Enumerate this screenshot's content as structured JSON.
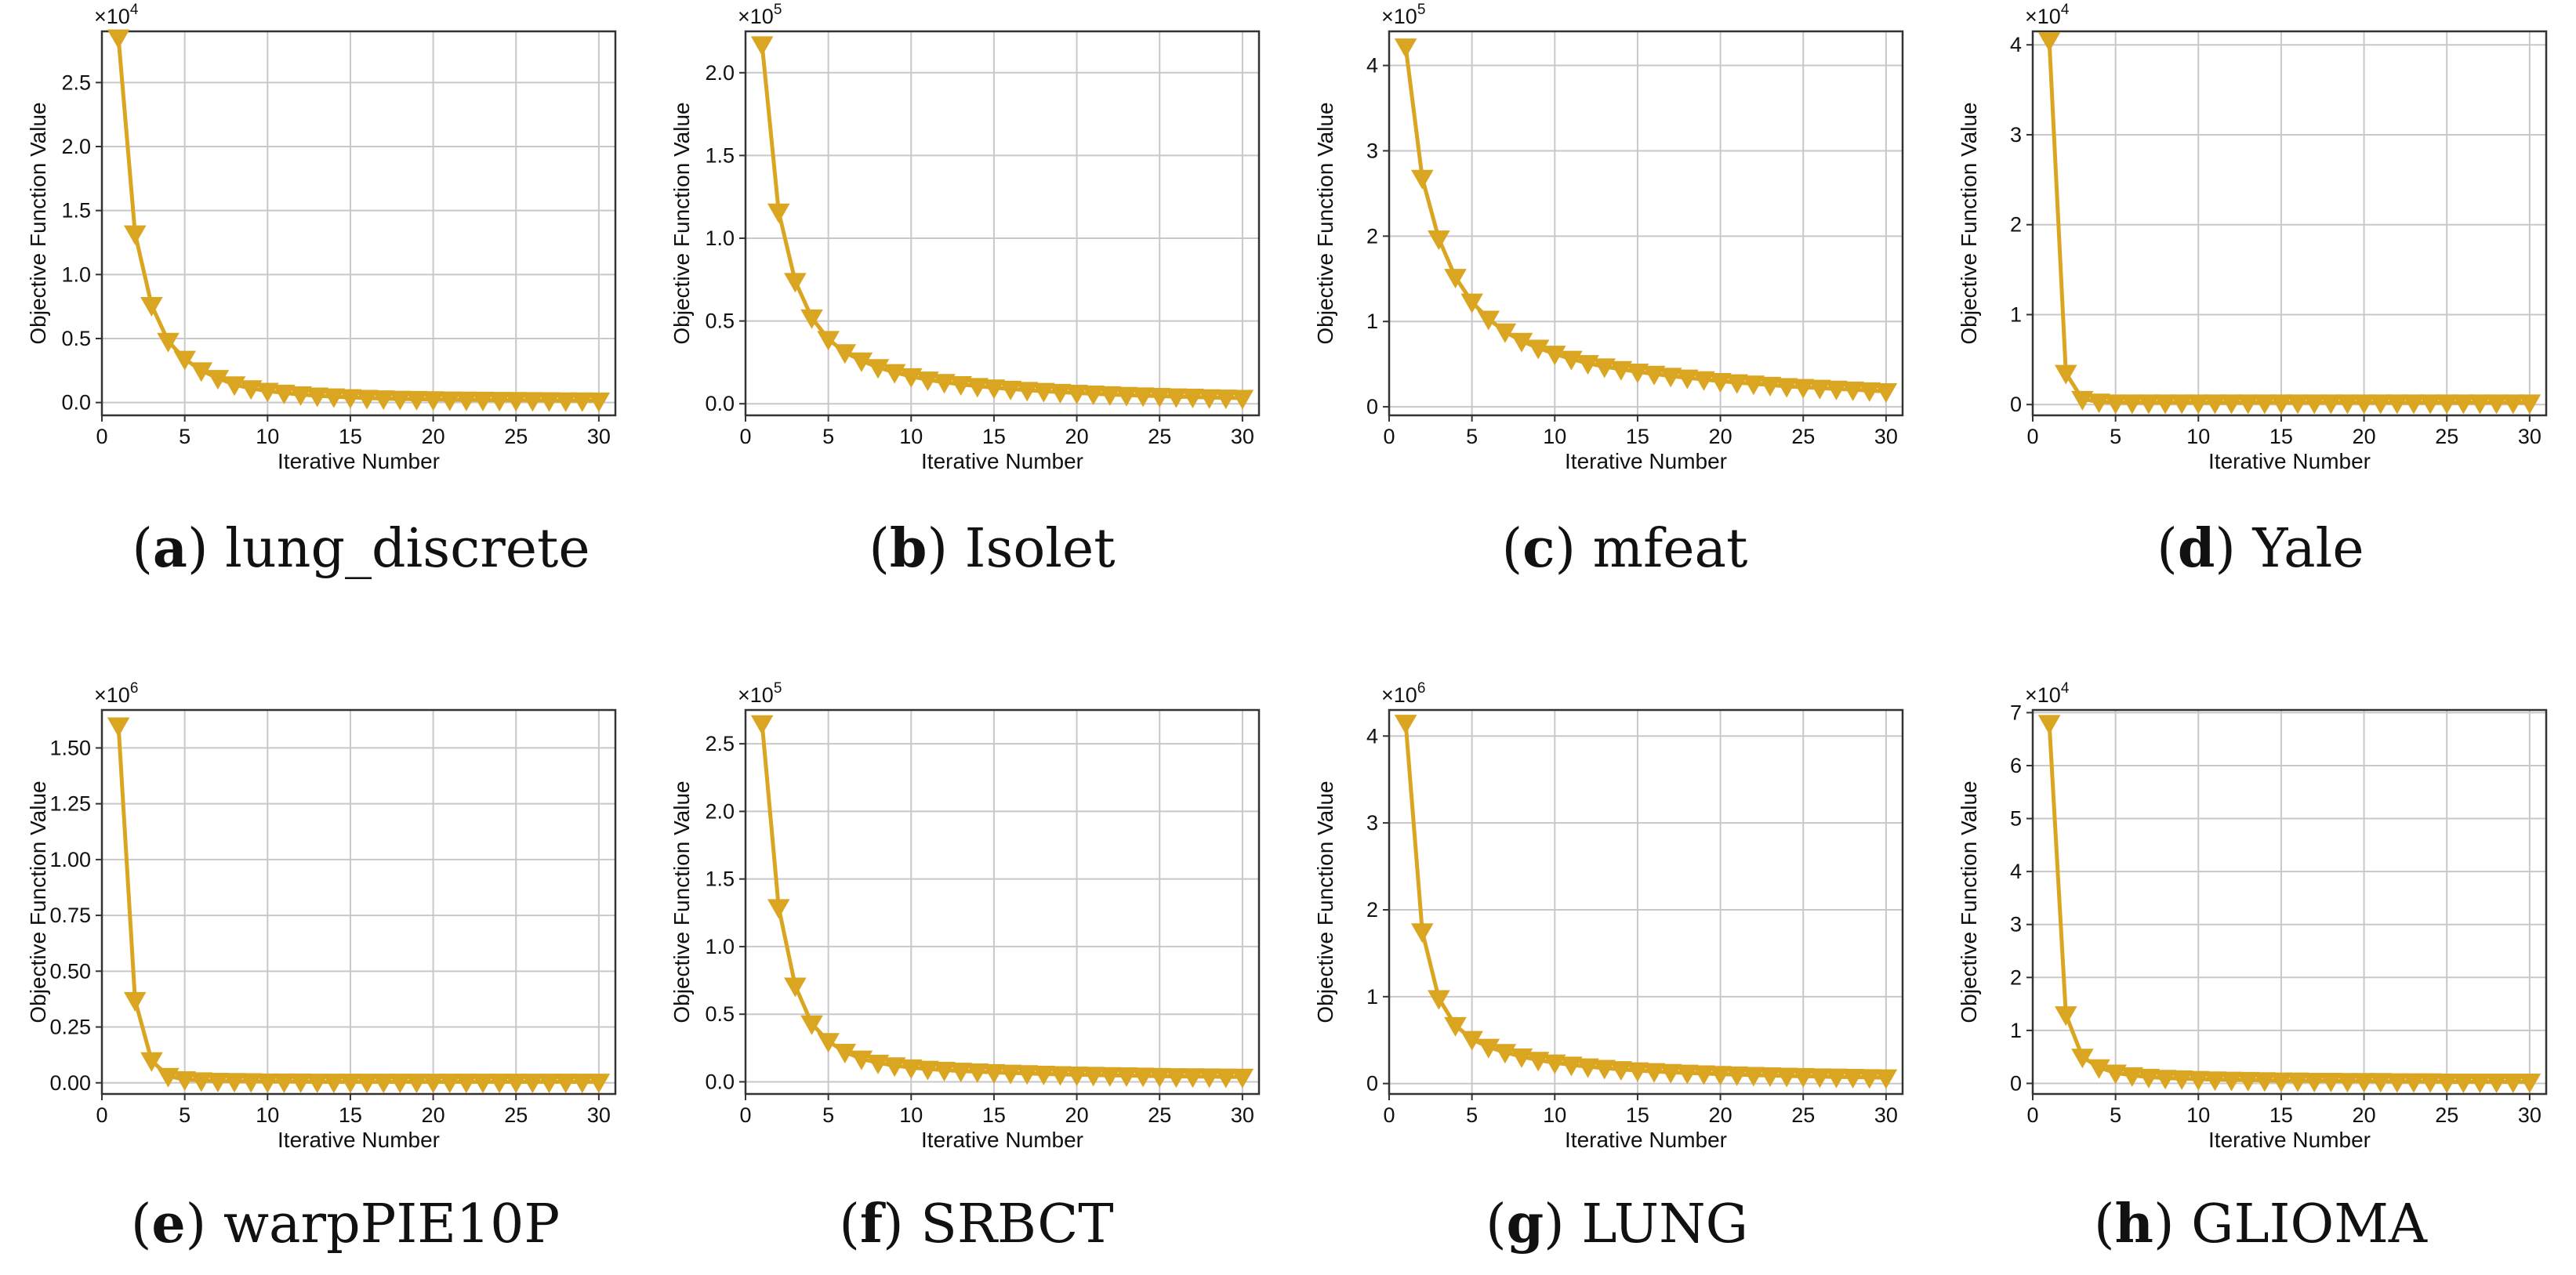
{
  "figure": {
    "line_color": "#DAA520",
    "marker": "down-triangle"
  },
  "chart_data": [
    {
      "id": "a",
      "type": "line",
      "letter": "a",
      "caption": "lung_discrete",
      "xlabel": "Iterative Number",
      "ylabel": "Objective Function Value",
      "scale_label": "×10",
      "scale_exp": "4",
      "scale": 10000,
      "xlim": [
        0,
        31
      ],
      "ylim": [
        -0.1,
        2.9
      ],
      "xticks": [
        0,
        5,
        10,
        15,
        20,
        25,
        30
      ],
      "xtick_labels": [
        "0",
        "5",
        "10",
        "15",
        "20",
        "25",
        "30"
      ],
      "yticks": [
        0,
        0.5,
        1.0,
        1.5,
        2.0,
        2.5
      ],
      "ytick_labels": [
        "0.0",
        "0.5",
        "1.0",
        "1.5",
        "2.0",
        "2.5"
      ],
      "x": [
        1,
        2,
        3,
        4,
        5,
        6,
        7,
        8,
        9,
        10,
        11,
        12,
        13,
        14,
        15,
        16,
        17,
        18,
        19,
        20,
        21,
        22,
        23,
        24,
        25,
        26,
        27,
        28,
        29,
        30
      ],
      "values": [
        2.85,
        1.32,
        0.76,
        0.48,
        0.34,
        0.25,
        0.19,
        0.14,
        0.11,
        0.09,
        0.075,
        0.062,
        0.053,
        0.046,
        0.04,
        0.035,
        0.031,
        0.028,
        0.026,
        0.024,
        0.022,
        0.021,
        0.02,
        0.019,
        0.018,
        0.017,
        0.016,
        0.015,
        0.015,
        0.014
      ]
    },
    {
      "id": "b",
      "type": "line",
      "letter": "b",
      "caption": "Isolet",
      "xlabel": "Iterative Number",
      "ylabel": "Objective Function Value",
      "scale_label": "×10",
      "scale_exp": "5",
      "scale": 100000,
      "xlim": [
        0,
        31
      ],
      "ylim": [
        -0.07,
        2.25
      ],
      "xticks": [
        0,
        5,
        10,
        15,
        20,
        25,
        30
      ],
      "xtick_labels": [
        "0",
        "5",
        "10",
        "15",
        "20",
        "25",
        "30"
      ],
      "yticks": [
        0,
        0.5,
        1.0,
        1.5,
        2.0
      ],
      "ytick_labels": [
        "0.0",
        "0.5",
        "1.0",
        "1.5",
        "2.0"
      ],
      "x": [
        1,
        2,
        3,
        4,
        5,
        6,
        7,
        8,
        9,
        10,
        11,
        12,
        13,
        14,
        15,
        16,
        17,
        18,
        19,
        20,
        21,
        22,
        23,
        24,
        25,
        26,
        27,
        28,
        29,
        30
      ],
      "values": [
        2.17,
        1.16,
        0.74,
        0.52,
        0.39,
        0.31,
        0.26,
        0.22,
        0.19,
        0.165,
        0.145,
        0.13,
        0.117,
        0.106,
        0.097,
        0.089,
        0.082,
        0.076,
        0.07,
        0.065,
        0.06,
        0.056,
        0.052,
        0.049,
        0.046,
        0.043,
        0.041,
        0.038,
        0.036,
        0.034
      ]
    },
    {
      "id": "c",
      "type": "line",
      "letter": "c",
      "caption": "mfeat",
      "xlabel": "Iterative Number",
      "ylabel": "Objective Function Value",
      "scale_label": "×10",
      "scale_exp": "5",
      "scale": 100000,
      "xlim": [
        0,
        31
      ],
      "ylim": [
        -0.1,
        4.4
      ],
      "xticks": [
        0,
        5,
        10,
        15,
        20,
        25,
        30
      ],
      "xtick_labels": [
        "0",
        "5",
        "10",
        "15",
        "20",
        "25",
        "30"
      ],
      "yticks": [
        0,
        1,
        2,
        3,
        4
      ],
      "ytick_labels": [
        "0",
        "1",
        "2",
        "3",
        "4"
      ],
      "x": [
        1,
        2,
        3,
        4,
        5,
        6,
        7,
        8,
        9,
        10,
        11,
        12,
        13,
        14,
        15,
        16,
        17,
        18,
        19,
        20,
        21,
        22,
        23,
        24,
        25,
        26,
        27,
        28,
        29,
        30
      ],
      "values": [
        4.22,
        2.68,
        1.97,
        1.52,
        1.23,
        1.03,
        0.88,
        0.77,
        0.69,
        0.62,
        0.56,
        0.51,
        0.47,
        0.44,
        0.41,
        0.385,
        0.36,
        0.34,
        0.32,
        0.3,
        0.285,
        0.27,
        0.255,
        0.24,
        0.23,
        0.22,
        0.21,
        0.2,
        0.19,
        0.18
      ]
    },
    {
      "id": "d",
      "type": "line",
      "letter": "d",
      "caption": "Yale",
      "xlabel": "Iterative Number",
      "ylabel": "Objective Function Value",
      "scale_label": "×10",
      "scale_exp": "4",
      "scale": 10000,
      "xlim": [
        0,
        31
      ],
      "ylim": [
        -0.12,
        4.15
      ],
      "xticks": [
        0,
        5,
        10,
        15,
        20,
        25,
        30
      ],
      "xtick_labels": [
        "0",
        "5",
        "10",
        "15",
        "20",
        "25",
        "30"
      ],
      "yticks": [
        0,
        1,
        2,
        3,
        4
      ],
      "ytick_labels": [
        "0",
        "1",
        "2",
        "3",
        "4"
      ],
      "x": [
        1,
        2,
        3,
        4,
        5,
        6,
        7,
        8,
        9,
        10,
        11,
        12,
        13,
        14,
        15,
        16,
        17,
        18,
        19,
        20,
        21,
        22,
        23,
        24,
        25,
        26,
        27,
        28,
        29,
        30
      ],
      "values": [
        4.05,
        0.35,
        0.06,
        0.03,
        0.02,
        0.02,
        0.02,
        0.02,
        0.02,
        0.02,
        0.02,
        0.02,
        0.02,
        0.02,
        0.02,
        0.02,
        0.02,
        0.02,
        0.02,
        0.02,
        0.02,
        0.02,
        0.02,
        0.02,
        0.02,
        0.02,
        0.02,
        0.02,
        0.02,
        0.02
      ]
    },
    {
      "id": "e",
      "type": "line",
      "letter": "e",
      "caption": "warpPIE10P",
      "xlabel": "Iterative Number",
      "ylabel": "Objective Function Value",
      "scale_label": "×10",
      "scale_exp": "6",
      "scale": 1000000,
      "xlim": [
        0,
        31
      ],
      "ylim": [
        -0.05,
        1.67
      ],
      "xticks": [
        0,
        5,
        10,
        15,
        20,
        25,
        30
      ],
      "xtick_labels": [
        "0",
        "5",
        "10",
        "15",
        "20",
        "25",
        "30"
      ],
      "yticks": [
        0,
        0.25,
        0.5,
        0.75,
        1.0,
        1.25,
        1.5
      ],
      "ytick_labels": [
        "0.00",
        "0.25",
        "0.50",
        "0.75",
        "1.00",
        "1.25",
        "1.50"
      ],
      "x": [
        1,
        2,
        3,
        4,
        5,
        6,
        7,
        8,
        9,
        10,
        11,
        12,
        13,
        14,
        15,
        16,
        17,
        18,
        19,
        20,
        21,
        22,
        23,
        24,
        25,
        26,
        27,
        28,
        29,
        30
      ],
      "values": [
        1.6,
        0.37,
        0.1,
        0.03,
        0.015,
        0.01,
        0.008,
        0.007,
        0.006,
        0.005,
        0.005,
        0.005,
        0.004,
        0.004,
        0.004,
        0.004,
        0.004,
        0.004,
        0.004,
        0.004,
        0.004,
        0.004,
        0.004,
        0.004,
        0.004,
        0.004,
        0.004,
        0.004,
        0.004,
        0.004
      ]
    },
    {
      "id": "f",
      "type": "line",
      "letter": "f",
      "caption": "SRBCT",
      "xlabel": "Iterative Number",
      "ylabel": "Objective Function Value",
      "scale_label": "×10",
      "scale_exp": "5",
      "scale": 100000,
      "xlim": [
        0,
        31
      ],
      "ylim": [
        -0.09,
        2.75
      ],
      "xticks": [
        0,
        5,
        10,
        15,
        20,
        25,
        30
      ],
      "xtick_labels": [
        "0",
        "5",
        "10",
        "15",
        "20",
        "25",
        "30"
      ],
      "yticks": [
        0,
        0.5,
        1.0,
        1.5,
        2.0,
        2.5
      ],
      "ytick_labels": [
        "0.0",
        "0.5",
        "1.0",
        "1.5",
        "2.0",
        "2.5"
      ],
      "x": [
        1,
        2,
        3,
        4,
        5,
        6,
        7,
        8,
        9,
        10,
        11,
        12,
        13,
        14,
        15,
        16,
        17,
        18,
        19,
        20,
        21,
        22,
        23,
        24,
        25,
        26,
        27,
        28,
        29,
        30
      ],
      "values": [
        2.65,
        1.29,
        0.71,
        0.43,
        0.3,
        0.22,
        0.17,
        0.14,
        0.12,
        0.105,
        0.095,
        0.087,
        0.08,
        0.075,
        0.07,
        0.066,
        0.062,
        0.058,
        0.055,
        0.052,
        0.05,
        0.048,
        0.046,
        0.044,
        0.042,
        0.04,
        0.039,
        0.038,
        0.037,
        0.036
      ]
    },
    {
      "id": "g",
      "type": "line",
      "letter": "g",
      "caption": "LUNG",
      "xlabel": "Iterative Number",
      "ylabel": "Objective Function Value",
      "scale_label": "×10",
      "scale_exp": "6",
      "scale": 1000000,
      "xlim": [
        0,
        31
      ],
      "ylim": [
        -0.12,
        4.3
      ],
      "xticks": [
        0,
        5,
        10,
        15,
        20,
        25,
        30
      ],
      "xtick_labels": [
        "0",
        "5",
        "10",
        "15",
        "20",
        "25",
        "30"
      ],
      "yticks": [
        0,
        1,
        2,
        3,
        4
      ],
      "ytick_labels": [
        "0",
        "1",
        "2",
        "3",
        "4"
      ],
      "x": [
        1,
        2,
        3,
        4,
        5,
        6,
        7,
        8,
        9,
        10,
        11,
        12,
        13,
        14,
        15,
        16,
        17,
        18,
        19,
        20,
        21,
        22,
        23,
        24,
        25,
        26,
        27,
        28,
        29,
        30
      ],
      "values": [
        4.15,
        1.75,
        0.98,
        0.67,
        0.51,
        0.42,
        0.36,
        0.31,
        0.27,
        0.24,
        0.215,
        0.195,
        0.178,
        0.163,
        0.15,
        0.14,
        0.13,
        0.122,
        0.115,
        0.108,
        0.102,
        0.097,
        0.092,
        0.088,
        0.084,
        0.08,
        0.077,
        0.074,
        0.071,
        0.068
      ]
    },
    {
      "id": "h",
      "type": "line",
      "letter": "h",
      "caption": "GLIOMA",
      "xlabel": "Iterative Number",
      "ylabel": "Objective Function Value",
      "scale_label": "×10",
      "scale_exp": "4",
      "scale": 10000,
      "xlim": [
        0,
        31
      ],
      "ylim": [
        -0.2,
        7.05
      ],
      "xticks": [
        0,
        5,
        10,
        15,
        20,
        25,
        30
      ],
      "xtick_labels": [
        "0",
        "5",
        "10",
        "15",
        "20",
        "25",
        "30"
      ],
      "yticks": [
        0,
        1,
        2,
        3,
        4,
        5,
        6,
        7
      ],
      "ytick_labels": [
        "0",
        "1",
        "2",
        "3",
        "4",
        "5",
        "6",
        "7"
      ],
      "x": [
        1,
        2,
        3,
        4,
        5,
        6,
        7,
        8,
        9,
        10,
        11,
        12,
        13,
        14,
        15,
        16,
        17,
        18,
        19,
        20,
        21,
        22,
        23,
        24,
        25,
        26,
        27,
        28,
        29,
        30
      ],
      "values": [
        6.8,
        1.3,
        0.5,
        0.3,
        0.2,
        0.15,
        0.12,
        0.1,
        0.09,
        0.08,
        0.07,
        0.065,
        0.06,
        0.055,
        0.05,
        0.05,
        0.045,
        0.045,
        0.04,
        0.04,
        0.04,
        0.035,
        0.035,
        0.035,
        0.03,
        0.03,
        0.03,
        0.03,
        0.03,
        0.03
      ]
    }
  ]
}
